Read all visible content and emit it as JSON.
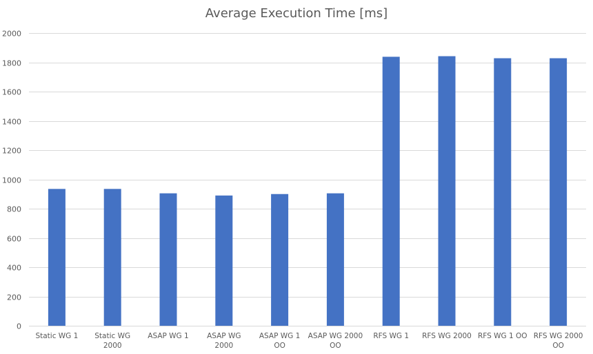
{
  "chart_data": {
    "type": "bar",
    "title": "Average Execution Time [ms]",
    "xlabel": "",
    "ylabel": "",
    "categories": [
      "Static WG 1",
      "Static WG 2000",
      "ASAP WG 1",
      "ASAP WG 2000",
      "ASAP WG 1 OO",
      "ASAP WG 2000 OO",
      "RFS WG 1",
      "RFS WG 2000",
      "RFS WG 1 OO",
      "RFS WG 2000 OO"
    ],
    "series": [
      {
        "values": [
          935,
          935,
          905,
          890,
          900,
          905,
          1838,
          1842,
          1828,
          1828
        ]
      }
    ],
    "ylim": [
      0,
      2000
    ],
    "yticks": [
      0,
      200,
      400,
      600,
      800,
      1000,
      1200,
      1400,
      1600,
      1800,
      2000
    ],
    "grid": true,
    "legend": "none",
    "colors": {
      "bar": "#4472C4",
      "grid": "#D9D9D9",
      "text": "#595959"
    }
  }
}
